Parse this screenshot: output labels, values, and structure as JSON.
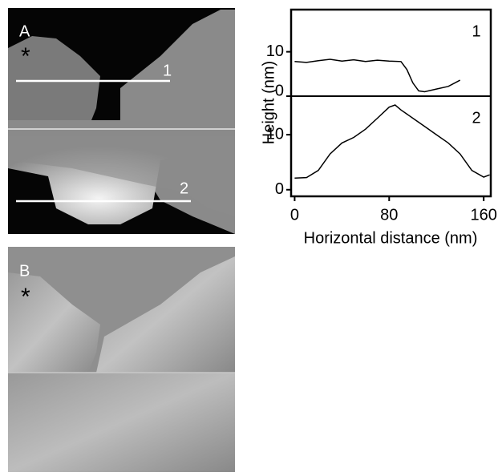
{
  "panel_a": {
    "label": "A",
    "marker": "*",
    "scan_lines": [
      "1",
      "2"
    ]
  },
  "panel_b": {
    "label": "B",
    "marker": "*"
  },
  "chart_data": [
    {
      "type": "line",
      "label": "1",
      "ylabel": "Height (nm)",
      "color": "#000000",
      "x": [
        0,
        10,
        20,
        30,
        40,
        50,
        60,
        70,
        80,
        90,
        95,
        100,
        105,
        110,
        120,
        130,
        140
      ],
      "values": [
        7.8,
        7.6,
        8.0,
        8.3,
        7.9,
        8.2,
        7.8,
        8.1,
        7.9,
        7.8,
        6,
        3,
        1.2,
        1.0,
        1.6,
        2.2,
        3.6
      ],
      "xlim": [
        -3,
        166
      ],
      "ylim": [
        0,
        19.5
      ],
      "yticks": [
        0,
        10
      ]
    },
    {
      "type": "line",
      "label": "2",
      "xlabel": "Horizontal distance (nm)",
      "color": "#000000",
      "x": [
        0,
        10,
        20,
        30,
        40,
        50,
        60,
        70,
        80,
        85,
        90,
        100,
        110,
        120,
        130,
        140,
        150,
        160,
        165
      ],
      "values": [
        2.1,
        2.2,
        3.5,
        6.5,
        8.5,
        9.5,
        11,
        13,
        15,
        15.4,
        14.5,
        13,
        11.5,
        10,
        8.5,
        6.5,
        3.5,
        2.3,
        2.7
      ],
      "xlim": [
        -3,
        166
      ],
      "ylim": [
        -1.2,
        17
      ],
      "xticks": [
        0,
        80,
        160
      ],
      "yticks": [
        0,
        10
      ]
    }
  ]
}
